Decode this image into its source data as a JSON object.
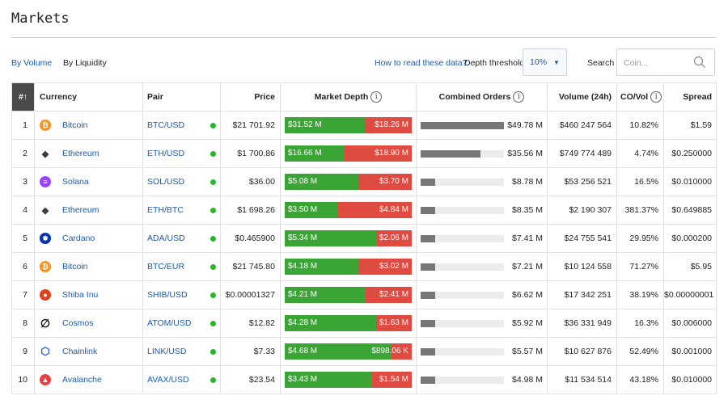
{
  "page": {
    "title": "Markets"
  },
  "toolbar": {
    "tabs": [
      {
        "label": "By Volume",
        "active": true
      },
      {
        "label": "By Liquidity",
        "active": false
      }
    ],
    "how_to_link": "How to read these data?",
    "threshold_label": "Depth threshold:",
    "threshold_value": "10%",
    "search_label": "Search",
    "search_placeholder": "Coin..."
  },
  "table": {
    "headers": {
      "rank": "#↑",
      "currency": "Currency",
      "pair": "Pair",
      "price": "Price",
      "depth": "Market Depth",
      "combined": "Combined Orders",
      "volume": "Volume (24h)",
      "covol": "CO/Vol",
      "spread": "Spread"
    },
    "info_icon_glyph": "i",
    "rows": [
      {
        "rank": "1",
        "currency": "Bitcoin",
        "icon": "bitcoin-icon",
        "icon_glyph": "₿",
        "icon_color": "#f7931a",
        "pair": "BTC/USD",
        "price": "$21 701.92",
        "bid": "$31.52 M",
        "ask": "$18.26 M",
        "bid_num": 31.52,
        "ask_num": 18.26,
        "combined": "$49.78 M",
        "combined_num": 49.78,
        "volume": "$460 247 564",
        "covol": "10.82%",
        "spread": "$1.59"
      },
      {
        "rank": "2",
        "currency": "Ethereum",
        "icon": "ethereum-icon",
        "icon_glyph": "◆",
        "icon_color": "#3c3c3d",
        "pair": "ETH/USD",
        "price": "$1 700.86",
        "bid": "$16.66 M",
        "ask": "$18.90 M",
        "bid_num": 16.66,
        "ask_num": 18.9,
        "combined": "$35.56 M",
        "combined_num": 35.56,
        "volume": "$749 774 489",
        "covol": "4.74%",
        "spread": "$0.250000"
      },
      {
        "rank": "3",
        "currency": "Solana",
        "icon": "solana-icon",
        "icon_glyph": "≡",
        "icon_color": "#9945ff",
        "pair": "SOL/USD",
        "price": "$36.00",
        "bid": "$5.08 M",
        "ask": "$3.70 M",
        "bid_num": 5.08,
        "ask_num": 3.7,
        "combined": "$8.78 M",
        "combined_num": 8.78,
        "volume": "$53 256 521",
        "covol": "16.5%",
        "spread": "$0.010000"
      },
      {
        "rank": "4",
        "currency": "Ethereum",
        "icon": "ethereum-icon",
        "icon_glyph": "◆",
        "icon_color": "#3c3c3d",
        "pair": "ETH/BTC",
        "price": "$1 698.26",
        "bid": "$3.50 M",
        "ask": "$4.84 M",
        "bid_num": 3.5,
        "ask_num": 4.84,
        "combined": "$8.35 M",
        "combined_num": 8.35,
        "volume": "$2 190 307",
        "covol": "381.37%",
        "spread": "$0.649885"
      },
      {
        "rank": "5",
        "currency": "Cardano",
        "icon": "cardano-icon",
        "icon_glyph": "✸",
        "icon_color": "#0033ad",
        "pair": "ADA/USD",
        "price": "$0.465900",
        "bid": "$5.34 M",
        "ask": "$2.06 M",
        "bid_num": 5.34,
        "ask_num": 2.06,
        "combined": "$7.41 M",
        "combined_num": 7.41,
        "volume": "$24 755 541",
        "covol": "29.95%",
        "spread": "$0.000200"
      },
      {
        "rank": "6",
        "currency": "Bitcoin",
        "icon": "bitcoin-icon",
        "icon_glyph": "₿",
        "icon_color": "#f7931a",
        "pair": "BTC/EUR",
        "price": "$21 745.80",
        "bid": "$4.18 M",
        "ask": "$3.02 M",
        "bid_num": 4.18,
        "ask_num": 3.02,
        "combined": "$7.21 M",
        "combined_num": 7.21,
        "volume": "$10 124 558",
        "covol": "71.27%",
        "spread": "$5.95"
      },
      {
        "rank": "7",
        "currency": "Shiba Inu",
        "icon": "shiba-inu-icon",
        "icon_glyph": "●",
        "icon_color": "#e0411b",
        "pair": "SHIB/USD",
        "price": "$0.00001327",
        "bid": "$4.21 M",
        "ask": "$2.41 M",
        "bid_num": 4.21,
        "ask_num": 2.41,
        "combined": "$6.62 M",
        "combined_num": 6.62,
        "volume": "$17 342 251",
        "covol": "38.19%",
        "spread": "$0.00000001"
      },
      {
        "rank": "8",
        "currency": "Cosmos",
        "icon": "cosmos-icon",
        "icon_glyph": "∅",
        "icon_color": "#ffffff",
        "pair": "ATOM/USD",
        "price": "$12.82",
        "bid": "$4.28 M",
        "ask": "$1.63 M",
        "bid_num": 4.28,
        "ask_num": 1.63,
        "combined": "$5.92 M",
        "combined_num": 5.92,
        "volume": "$36 331 949",
        "covol": "16.3%",
        "spread": "$0.006000"
      },
      {
        "rank": "9",
        "currency": "Chainlink",
        "icon": "chainlink-icon",
        "icon_glyph": "⬡",
        "icon_color": "#2a5ada",
        "pair": "LINK/USD",
        "price": "$7.33",
        "bid": "$4.68 M",
        "ask": "$898.06 K",
        "bid_num": 4.68,
        "ask_num": 0.898,
        "combined": "$5.57 M",
        "combined_num": 5.57,
        "volume": "$10 627 876",
        "covol": "52.49%",
        "spread": "$0.001000"
      },
      {
        "rank": "10",
        "currency": "Avalanche",
        "icon": "avalanche-icon",
        "icon_glyph": "▲",
        "icon_color": "#e84142",
        "pair": "AVAX/USD",
        "price": "$23.54",
        "bid": "$3.43 M",
        "ask": "$1.54 M",
        "bid_num": 3.43,
        "ask_num": 1.54,
        "combined": "$4.98 M",
        "combined_num": 4.98,
        "volume": "$11 534 514",
        "covol": "43.18%",
        "spread": "$0.010000"
      }
    ]
  },
  "colors": {
    "link": "#1c5bb0",
    "bid": "#3aa535",
    "ask": "#e04b41",
    "status_dot": "#2db32d",
    "combined_bar": "#777777"
  }
}
